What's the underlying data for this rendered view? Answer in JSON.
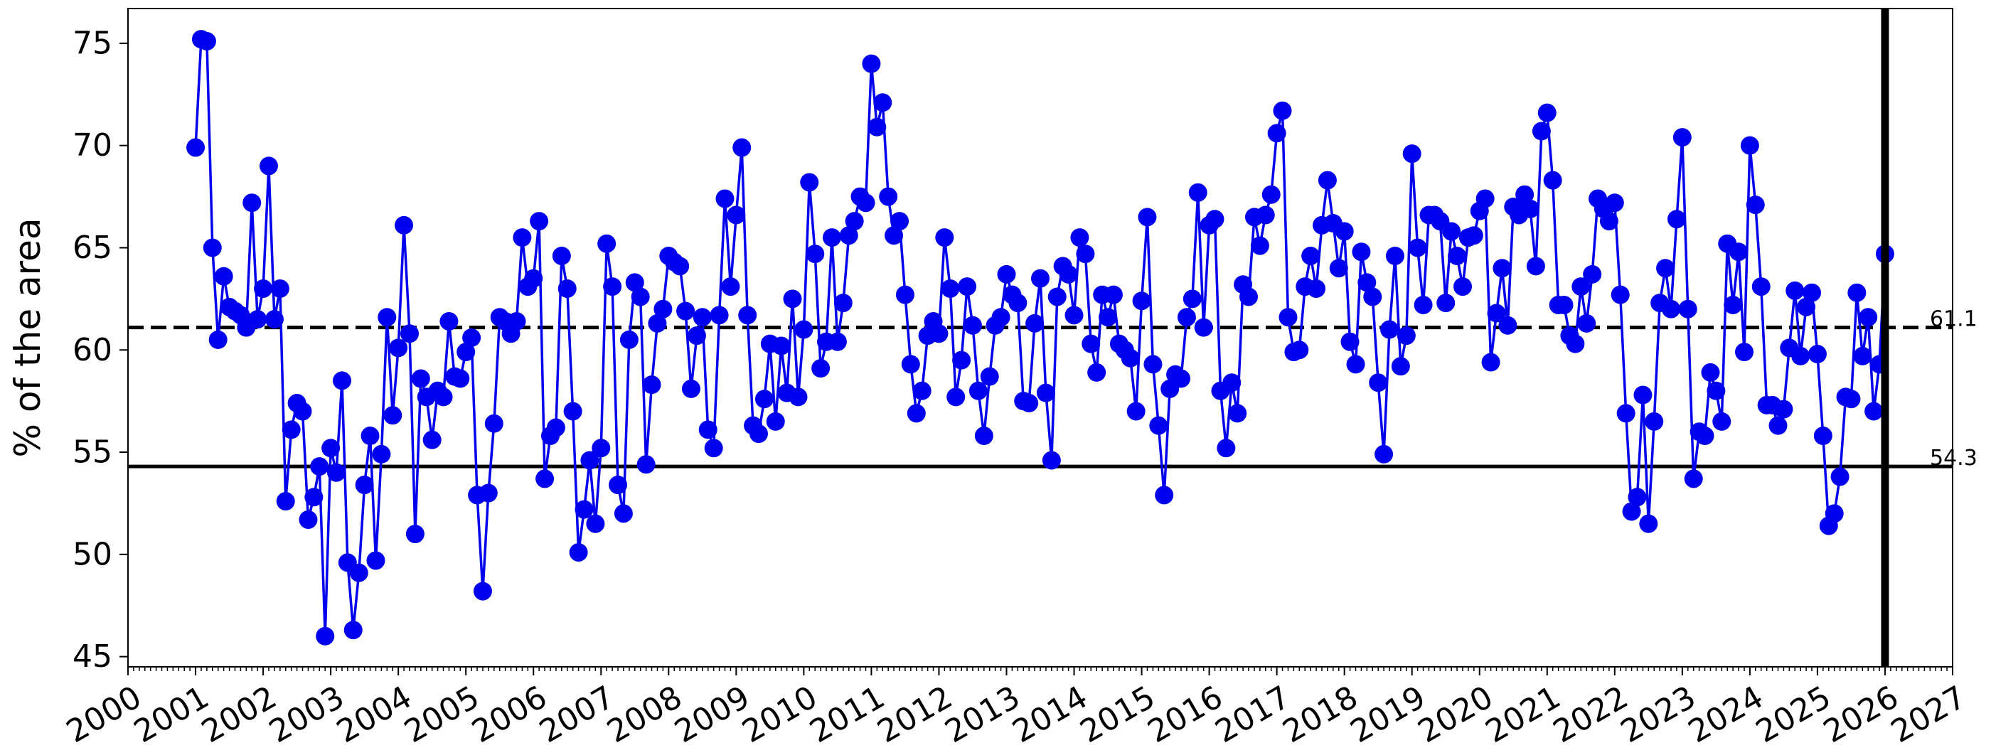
{
  "chart_data": {
    "type": "line",
    "title": "",
    "xlabel": "",
    "ylabel": "% of the area",
    "xlim": [
      2000,
      2027
    ],
    "ylim": [
      44.5,
      76.7
    ],
    "x_ticks": [
      "2000",
      "2001",
      "2002",
      "2003",
      "2004",
      "2005",
      "2006",
      "2007",
      "2008",
      "2009",
      "2010",
      "2011",
      "2012",
      "2013",
      "2014",
      "2015",
      "2016",
      "2017",
      "2018",
      "2019",
      "2020",
      "2021",
      "2022",
      "2023",
      "2024",
      "2025",
      "2026",
      "2027"
    ],
    "y_ticks": [
      "45",
      "50",
      "55",
      "60",
      "65",
      "70",
      "75"
    ],
    "grid": false,
    "reference_lines": [
      {
        "value": 61.1,
        "label": "61.1",
        "style": "dashed"
      },
      {
        "value": 54.3,
        "label": "54.3",
        "style": "solid"
      }
    ],
    "marker_line": {
      "x": 2026.0
    },
    "series": [
      {
        "color": "#0000ee",
        "x": [
          2001.0,
          2001.083,
          2001.167,
          2001.25,
          2001.333,
          2001.417,
          2001.5,
          2001.583,
          2001.667,
          2001.75,
          2001.833,
          2001.917,
          2002.0,
          2002.083,
          2002.167,
          2002.25,
          2002.333,
          2002.417,
          2002.5,
          2002.583,
          2002.667,
          2002.75,
          2002.833,
          2002.917,
          2003.0,
          2003.083,
          2003.167,
          2003.25,
          2003.333,
          2003.417,
          2003.5,
          2003.583,
          2003.667,
          2003.75,
          2003.833,
          2003.917,
          2004.0,
          2004.083,
          2004.167,
          2004.25,
          2004.333,
          2004.417,
          2004.5,
          2004.583,
          2004.667,
          2004.75,
          2004.833,
          2004.917,
          2005.0,
          2005.083,
          2005.167,
          2005.25,
          2005.333,
          2005.417,
          2005.5,
          2005.583,
          2005.667,
          2005.75,
          2005.833,
          2005.917,
          2006.0,
          2006.083,
          2006.167,
          2006.25,
          2006.333,
          2006.417,
          2006.5,
          2006.583,
          2006.667,
          2006.75,
          2006.833,
          2006.917,
          2007.0,
          2007.083,
          2007.167,
          2007.25,
          2007.333,
          2007.417,
          2007.5,
          2007.583,
          2007.667,
          2007.75,
          2007.833,
          2007.917,
          2008.0,
          2008.083,
          2008.167,
          2008.25,
          2008.333,
          2008.417,
          2008.5,
          2008.583,
          2008.667,
          2008.75,
          2008.833,
          2008.917,
          2009.0,
          2009.083,
          2009.167,
          2009.25,
          2009.333,
          2009.417,
          2009.5,
          2009.583,
          2009.667,
          2009.75,
          2009.833,
          2009.917,
          2010.0,
          2010.083,
          2010.167,
          2010.25,
          2010.333,
          2010.417,
          2010.5,
          2010.583,
          2010.667,
          2010.75,
          2010.833,
          2010.917,
          2011.0,
          2011.083,
          2011.167,
          2011.25,
          2011.333,
          2011.417,
          2011.5,
          2011.583,
          2011.667,
          2011.75,
          2011.833,
          2011.917,
          2012.0,
          2012.083,
          2012.167,
          2012.25,
          2012.333,
          2012.417,
          2012.5,
          2012.583,
          2012.667,
          2012.75,
          2012.833,
          2012.917,
          2013.0,
          2013.083,
          2013.167,
          2013.25,
          2013.333,
          2013.417,
          2013.5,
          2013.583,
          2013.667,
          2013.75,
          2013.833,
          2013.917,
          2014.0,
          2014.083,
          2014.167,
          2014.25,
          2014.333,
          2014.417,
          2014.5,
          2014.583,
          2014.667,
          2014.75,
          2014.833,
          2014.917,
          2015.0,
          2015.083,
          2015.167,
          2015.25,
          2015.333,
          2015.417,
          2015.5,
          2015.583,
          2015.667,
          2015.75,
          2015.833,
          2015.917,
          2016.0,
          2016.083,
          2016.167,
          2016.25,
          2016.333,
          2016.417,
          2016.5,
          2016.583,
          2016.667,
          2016.75,
          2016.833,
          2016.917,
          2017.0,
          2017.083,
          2017.167,
          2017.25,
          2017.333,
          2017.417,
          2017.5,
          2017.583,
          2017.667,
          2017.75,
          2017.833,
          2017.917,
          2018.0,
          2018.083,
          2018.167,
          2018.25,
          2018.333,
          2018.417,
          2018.5,
          2018.583,
          2018.667,
          2018.75,
          2018.833,
          2018.917,
          2019.0,
          2019.083,
          2019.167,
          2019.25,
          2019.333,
          2019.417,
          2019.5,
          2019.583,
          2019.667,
          2019.75,
          2019.833,
          2019.917,
          2020.0,
          2020.083,
          2020.167,
          2020.25,
          2020.333,
          2020.417,
          2020.5,
          2020.583,
          2020.667,
          2020.75,
          2020.833,
          2020.917,
          2021.0,
          2021.083,
          2021.167,
          2021.25,
          2021.333,
          2021.417,
          2021.5,
          2021.583,
          2021.667,
          2021.75,
          2021.833,
          2021.917,
          2022.0,
          2022.083,
          2022.167,
          2022.25,
          2022.333,
          2022.417,
          2022.5,
          2022.583,
          2022.667,
          2022.75,
          2022.833,
          2022.917,
          2023.0,
          2023.083,
          2023.167,
          2023.25,
          2023.333,
          2023.417,
          2023.5,
          2023.583,
          2023.667,
          2023.75,
          2023.833,
          2023.917,
          2024.0,
          2024.083,
          2024.167,
          2024.25,
          2024.333,
          2024.417,
          2024.5,
          2024.583,
          2024.667,
          2024.75,
          2024.833,
          2024.917,
          2025.0,
          2025.083,
          2025.167,
          2025.25,
          2025.333,
          2025.417,
          2025.5,
          2025.583,
          2025.667,
          2025.75,
          2025.833,
          2025.917,
          2026.0
        ],
        "values": [
          69.9,
          75.2,
          75.1,
          65.0,
          60.5,
          63.6,
          62.1,
          61.9,
          61.7,
          61.1,
          67.2,
          61.5,
          63.0,
          69.0,
          61.5,
          63.0,
          52.6,
          56.1,
          57.4,
          57.0,
          51.7,
          52.8,
          54.3,
          46.0,
          55.2,
          54.0,
          58.5,
          49.6,
          46.3,
          49.1,
          53.4,
          55.8,
          49.7,
          54.9,
          61.6,
          56.8,
          60.1,
          66.1,
          60.8,
          51.0,
          58.6,
          57.7,
          55.6,
          58.0,
          57.7,
          61.4,
          58.7,
          58.6,
          59.9,
          60.6,
          52.9,
          48.2,
          53.0,
          56.4,
          61.6,
          61.4,
          60.8,
          61.4,
          65.5,
          63.1,
          63.5,
          66.3,
          53.7,
          55.8,
          56.2,
          64.6,
          63.0,
          57.0,
          50.1,
          52.2,
          54.6,
          51.5,
          55.2,
          65.2,
          63.1,
          53.4,
          52.0,
          60.5,
          63.3,
          62.6,
          54.4,
          58.3,
          61.3,
          62.0,
          64.6,
          64.3,
          64.1,
          61.9,
          58.1,
          60.7,
          61.6,
          56.1,
          55.2,
          61.7,
          67.4,
          63.1,
          66.6,
          69.9,
          61.7,
          56.3,
          55.9,
          57.6,
          60.3,
          56.5,
          60.2,
          57.9,
          62.5,
          57.7,
          61.0,
          68.2,
          64.7,
          59.1,
          60.4,
          65.5,
          60.4,
          62.3,
          65.6,
          66.3,
          67.5,
          67.2,
          74.0,
          70.9,
          72.1,
          67.5,
          65.6,
          66.3,
          62.7,
          59.3,
          56.9,
          58.0,
          60.7,
          61.4,
          60.8,
          65.5,
          63.0,
          57.7,
          59.5,
          63.1,
          61.2,
          58.0,
          55.8,
          58.7,
          61.2,
          61.6,
          63.7,
          62.7,
          62.3,
          57.5,
          57.4,
          61.3,
          63.5,
          57.9,
          54.6,
          62.6,
          64.1,
          63.7,
          61.7,
          65.5,
          64.7,
          60.3,
          58.9,
          62.7,
          61.6,
          62.7,
          60.3,
          60.0,
          59.6,
          57.0,
          62.4,
          66.5,
          59.3,
          56.3,
          52.9,
          58.1,
          58.8,
          58.6,
          61.6,
          62.5,
          67.7,
          61.1,
          66.1,
          66.4,
          58.0,
          55.2,
          58.4,
          56.9,
          63.2,
          62.6,
          66.5,
          65.1,
          66.6,
          67.6,
          70.6,
          71.7,
          61.6,
          59.9,
          60.0,
          63.1,
          64.6,
          63.0,
          66.1,
          68.3,
          66.2,
          64.0,
          65.8,
          60.4,
          59.3,
          64.8,
          63.3,
          62.6,
          58.4,
          54.9,
          61.0,
          64.6,
          59.2,
          60.7,
          69.6,
          65.0,
          62.2,
          66.6,
          66.6,
          66.3,
          62.3,
          65.8,
          64.6,
          63.1,
          65.5,
          65.6,
          66.8,
          67.4,
          59.4,
          61.8,
          64.0,
          61.2,
          67.0,
          66.6,
          67.6,
          66.9,
          64.1,
          70.7,
          71.6,
          68.3,
          62.2,
          62.2,
          60.7,
          60.3,
          63.1,
          61.3,
          63.7,
          67.4,
          66.9,
          66.3,
          67.2,
          62.7,
          56.9,
          52.1,
          52.8,
          57.8,
          51.5,
          56.5,
          62.3,
          64.0,
          62.0,
          66.4,
          70.4,
          62.0,
          53.7,
          56.0,
          55.8,
          58.9,
          58.0,
          56.5,
          65.2,
          62.2,
          64.8,
          59.9,
          70.0,
          67.1,
          63.1,
          57.3,
          57.3,
          56.3,
          57.1,
          60.1,
          62.9,
          59.7,
          62.1,
          62.8,
          59.8,
          55.8,
          51.4,
          52.0,
          53.8,
          57.7,
          57.6,
          62.8,
          59.7,
          61.6,
          57.0,
          59.3,
          64.7
        ]
      }
    ]
  }
}
